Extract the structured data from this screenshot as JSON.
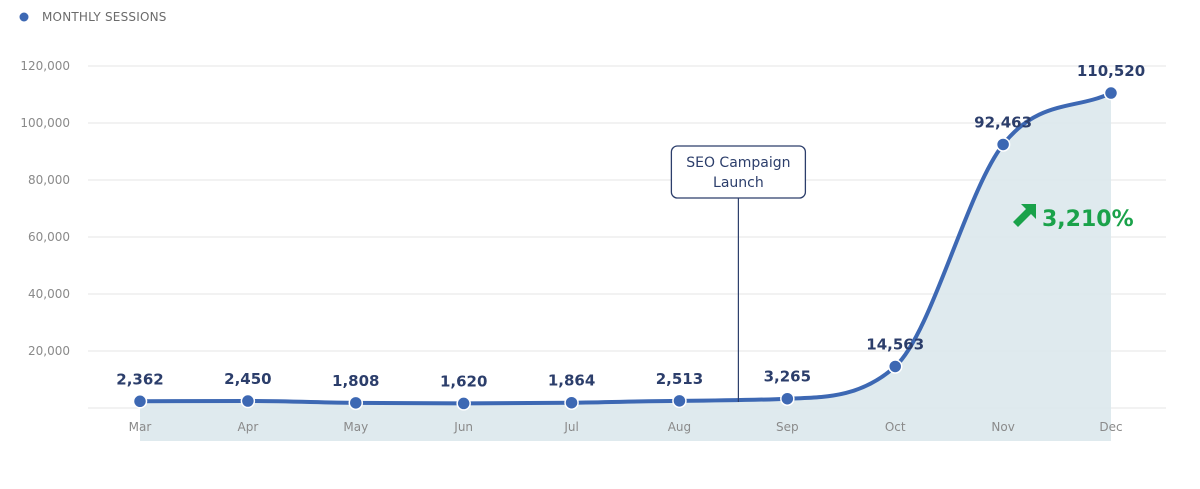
{
  "chart_data": {
    "type": "area",
    "legend": {
      "label": "MONTHLY SESSIONS",
      "position": "top-left"
    },
    "categories": [
      "Mar",
      "Apr",
      "May",
      "Jun",
      "Jul",
      "Aug",
      "Sep",
      "Oct",
      "Nov",
      "Dec"
    ],
    "series": [
      {
        "name": "MONTHLY SESSIONS",
        "values": [
          2362,
          2450,
          1808,
          1620,
          1864,
          2513,
          3265,
          14563,
          92463,
          110520
        ],
        "labels": [
          "2,362",
          "2,450",
          "1,808",
          "1,620",
          "1,864",
          "2,513",
          "3,265",
          "14,563",
          "92,463",
          "110,520"
        ]
      }
    ],
    "yticks": [
      20000,
      40000,
      60000,
      80000,
      100000,
      120000
    ],
    "ytick_labels": [
      "20,000",
      "40,000",
      "60,000",
      "80,000",
      "100,000",
      "120,000"
    ],
    "ylim": [
      0,
      120000
    ],
    "grid": true,
    "annotation": {
      "text_lines": [
        "SEO Campaign",
        "Launch"
      ],
      "between": [
        "Aug",
        "Sep"
      ]
    },
    "growth": {
      "text": "3,210%",
      "direction": "up"
    }
  },
  "colors": {
    "line": "#3d68b3",
    "fill": "#dce8ec",
    "grid": "#e6e6e6",
    "label": "#2c3e6b",
    "growth": "#1aa24a",
    "annotation_border": "#2c3e6b"
  }
}
